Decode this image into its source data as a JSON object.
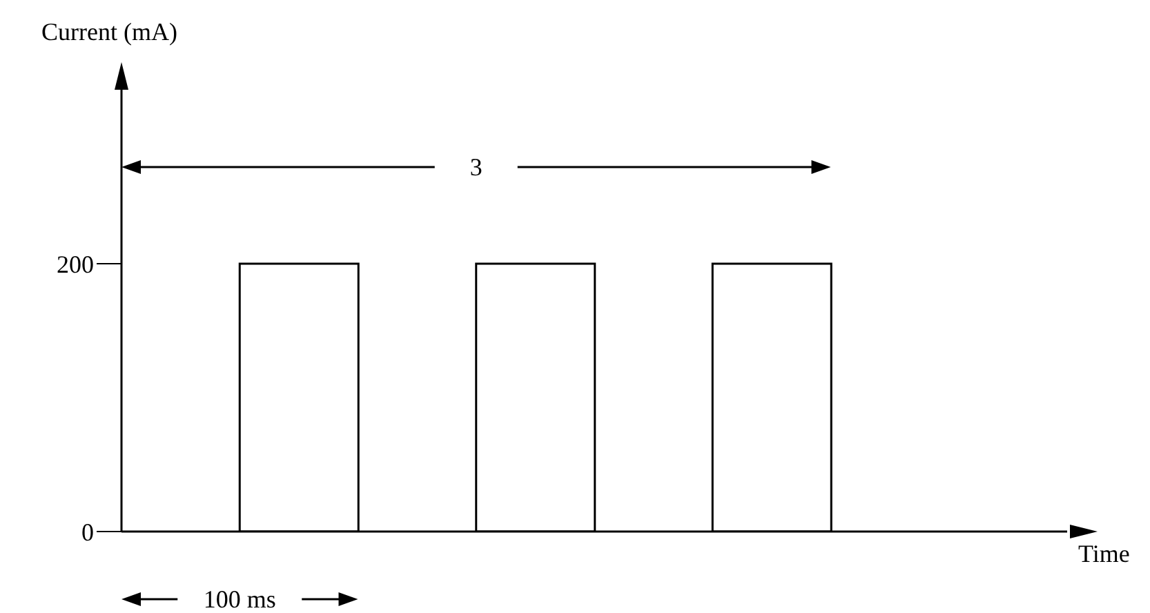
{
  "chart_data": {
    "type": "bar",
    "xlabel": "Time",
    "ylabel": "Current (mA)",
    "categories": [
      null,
      null,
      null,
      null,
      null,
      null,
      null,
      null
    ],
    "values": [
      0,
      200,
      0,
      200,
      0,
      200,
      0,
      0
    ],
    "color": "#ffffff",
    "ylim": [
      0,
      330
    ],
    "yticks": [
      0,
      200
    ],
    "annotations": [
      "3",
      "100 ms"
    ],
    "grid": false,
    "tick_labels": "y"
  }
}
